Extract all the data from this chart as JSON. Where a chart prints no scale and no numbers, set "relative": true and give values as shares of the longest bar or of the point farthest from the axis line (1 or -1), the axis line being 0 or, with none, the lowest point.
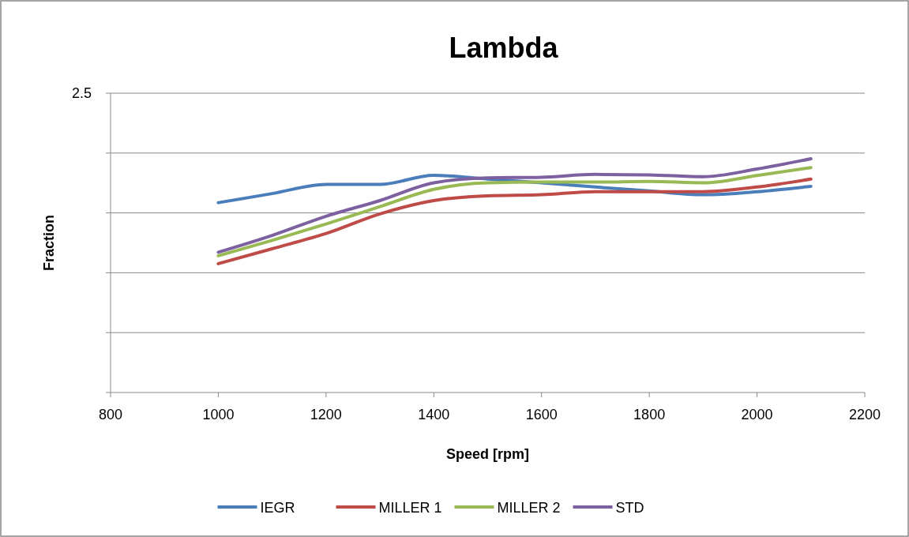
{
  "chart_data": {
    "type": "line",
    "title": "Lambda",
    "xlabel": "Speed [rpm]",
    "ylabel": "Fraction",
    "relative": true,
    "grid": true,
    "legend": "bottom",
    "marker": "none",
    "line_style": "solid",
    "annotations": [
      "2.5"
    ],
    "x": [
      1000,
      1100,
      1200,
      1300,
      1400,
      1500,
      1600,
      1700,
      1800,
      1900,
      2000,
      2100
    ],
    "xlim": [
      800,
      2200
    ],
    "xticks": [
      800,
      1000,
      1200,
      1400,
      1600,
      1800,
      2000,
      2200
    ],
    "series": [
      {
        "name": "IEGR",
        "color": "#4a7ebb",
        "values": [
          0.812,
          0.851,
          0.89,
          0.89,
          0.929,
          0.913,
          0.897,
          0.879,
          0.862,
          0.846,
          0.859,
          0.882
        ]
      },
      {
        "name": "MILLER 1",
        "color": "#be4b48",
        "values": [
          0.551,
          0.615,
          0.68,
          0.764,
          0.821,
          0.841,
          0.846,
          0.859,
          0.859,
          0.859,
          0.879,
          0.913
        ]
      },
      {
        "name": "MILLER 2",
        "color": "#98b954",
        "values": [
          0.585,
          0.651,
          0.721,
          0.795,
          0.869,
          0.897,
          0.9,
          0.9,
          0.903,
          0.897,
          0.928,
          0.962
        ]
      },
      {
        "name": "STD",
        "color": "#7d60a0",
        "values": [
          0.6,
          0.672,
          0.754,
          0.821,
          0.897,
          0.918,
          0.921,
          0.933,
          0.931,
          0.923,
          0.956,
          1
        ]
      }
    ]
  }
}
